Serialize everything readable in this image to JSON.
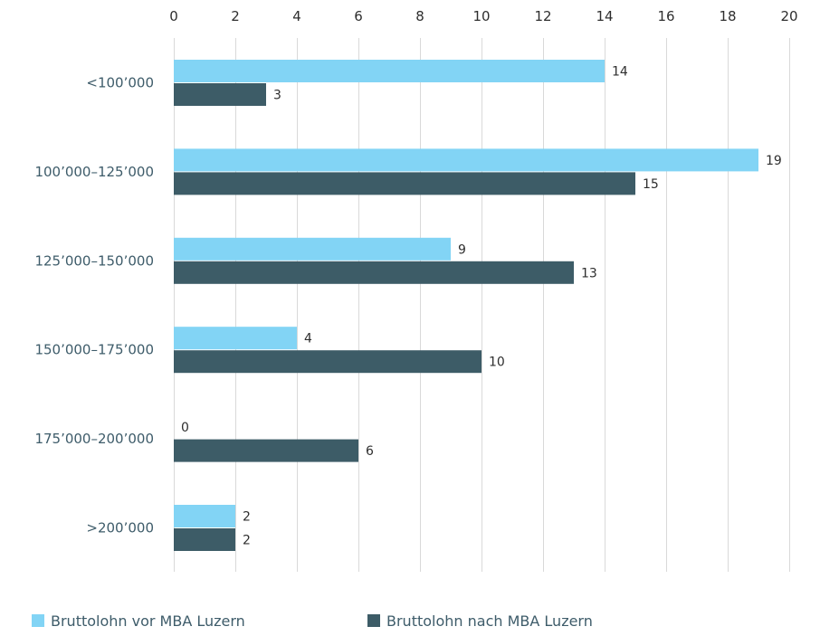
{
  "chart_data": {
    "type": "bar",
    "orientation": "horizontal",
    "categories": [
      "<100’000",
      "100’000–125’000",
      "125’000–150’000",
      "150’000–175’000",
      "175’000–200’000",
      ">200’000"
    ],
    "series": [
      {
        "name": "Bruttolohn vor MBA Luzern",
        "color": "#82d4f5",
        "values": [
          14,
          19,
          9,
          4,
          0,
          2
        ]
      },
      {
        "name": "Bruttolohn nach MBA Luzern",
        "color": "#3d5c67",
        "values": [
          3,
          15,
          13,
          10,
          6,
          2
        ]
      }
    ],
    "xlim": [
      0,
      20
    ],
    "xticks": [
      0,
      2,
      4,
      6,
      8,
      10,
      12,
      14,
      16,
      18,
      20
    ],
    "xaxis_position": "top",
    "grid": true,
    "legend_position": "bottom",
    "data_labels": true
  }
}
